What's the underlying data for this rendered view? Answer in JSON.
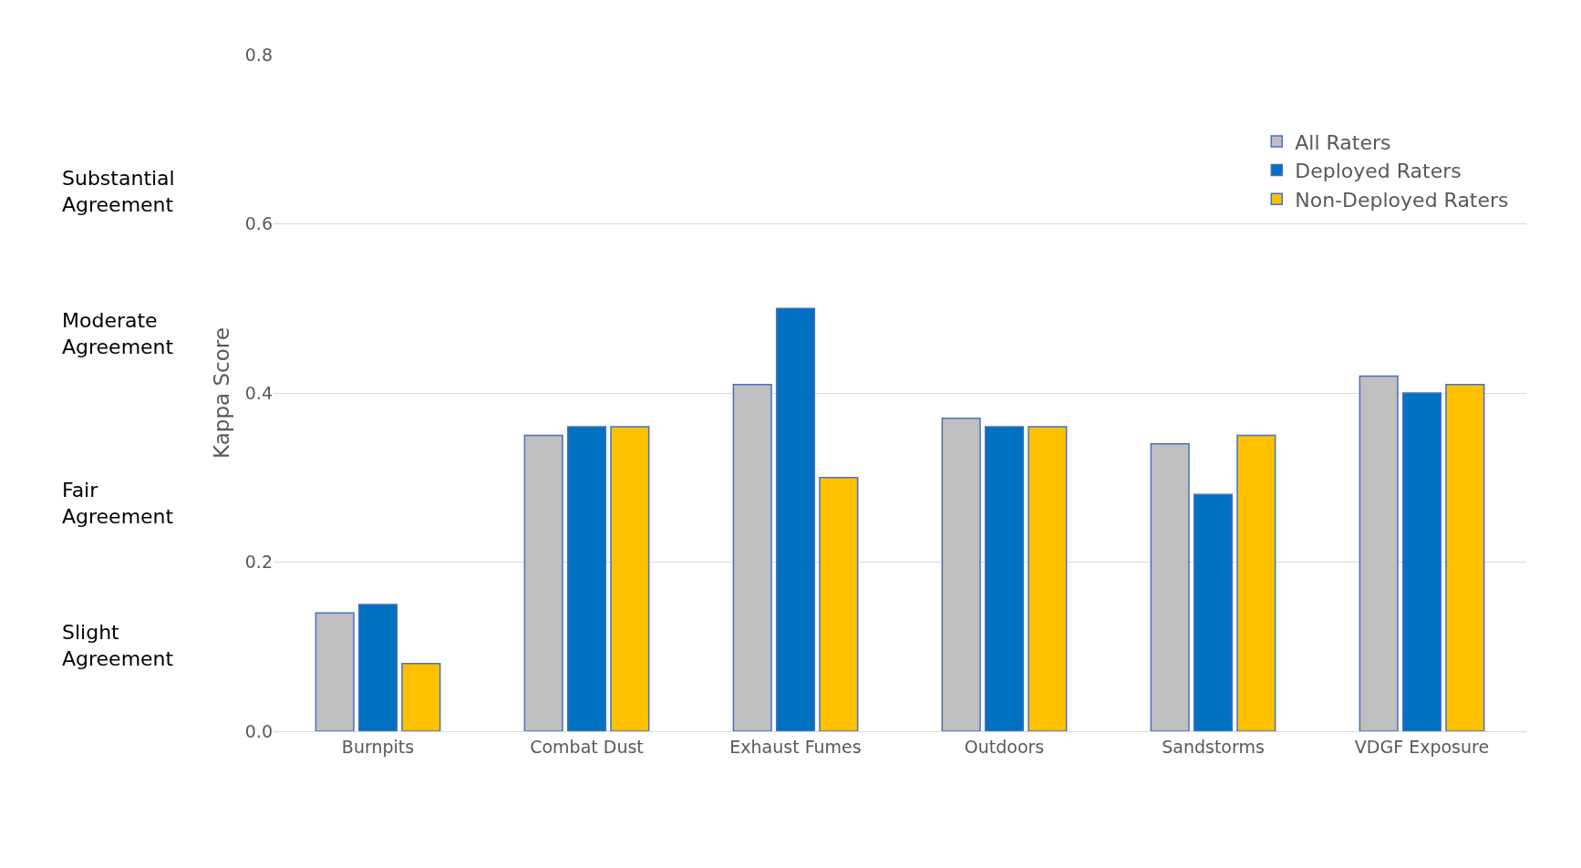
{
  "chart_data": {
    "type": "bar",
    "ylabel": "Kappa Score",
    "categories": [
      "Burnpits",
      "Combat Dust",
      "Exhaust Fumes",
      "Outdoors",
      "Sandstorms",
      "VDGF Exposure"
    ],
    "series": [
      {
        "name": "All Raters",
        "color": "#bfbfbf",
        "values": [
          0.14,
          0.35,
          0.41,
          0.37,
          0.34,
          0.42
        ]
      },
      {
        "name": "Deployed Raters",
        "color": "#0070c0",
        "values": [
          0.15,
          0.36,
          0.5,
          0.36,
          0.28,
          0.4
        ]
      },
      {
        "name": "Non-Deployed Raters",
        "color": "#ffc000",
        "values": [
          0.08,
          0.36,
          0.3,
          0.36,
          0.35,
          0.41
        ]
      }
    ],
    "ylim": [
      0,
      0.8
    ],
    "yticks": [
      {
        "value": 0,
        "label": "0.0"
      },
      {
        "value": 0.2,
        "label": "0.2"
      },
      {
        "value": 0.4,
        "label": "0.4"
      },
      {
        "value": 0.6,
        "label": "0.6"
      },
      {
        "value": 0.8,
        "label": "0.8"
      }
    ],
    "grid": "y",
    "legend": "top right",
    "annotations": [
      "Substantial Agreement",
      "Moderate Agreement",
      "Fair Agreement",
      "Slight Agreement"
    ]
  }
}
